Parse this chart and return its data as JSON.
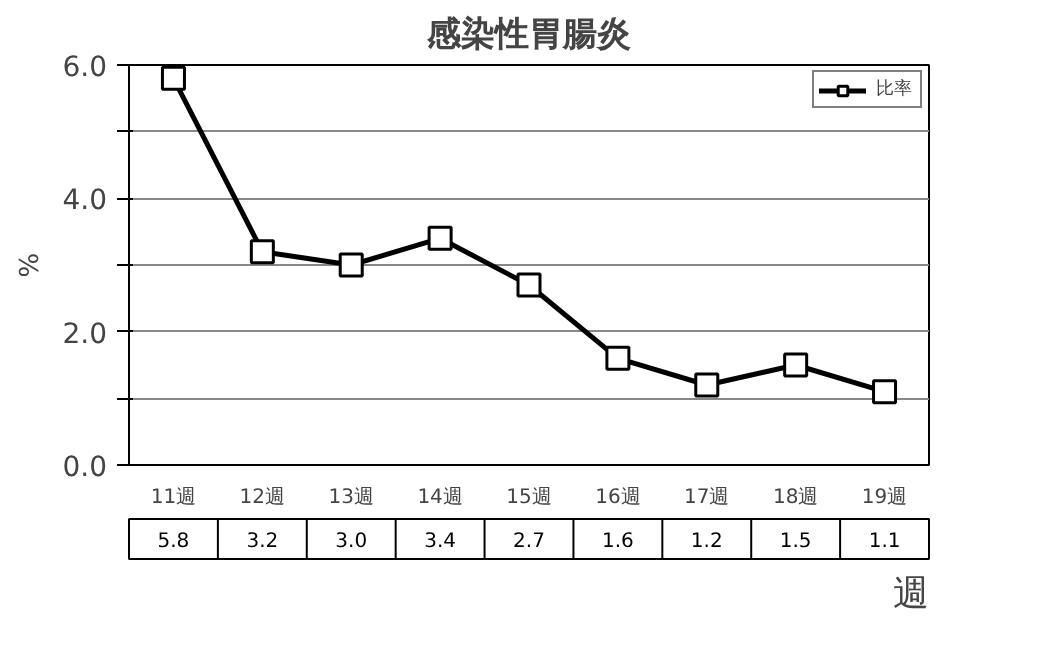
{
  "chart_data": {
    "type": "line",
    "title": "感染性胃腸炎",
    "ylabel": "%",
    "xlabel": "週",
    "categories": [
      "11週",
      "12週",
      "13週",
      "14週",
      "15週",
      "16週",
      "17週",
      "18週",
      "19週"
    ],
    "series": [
      {
        "name": "比率",
        "color": "#000000",
        "values": [
          5.8,
          3.2,
          3.0,
          3.4,
          2.7,
          1.6,
          1.2,
          1.5,
          1.1
        ],
        "value_labels": [
          "5.8",
          "3.2",
          "3.0",
          "3.4",
          "2.7",
          "1.6",
          "1.2",
          "1.5",
          "1.1"
        ]
      }
    ],
    "ylim": [
      0,
      6
    ],
    "yticks": [
      {
        "value": 0,
        "label": "0.0"
      },
      {
        "value": 1,
        "label": null
      },
      {
        "value": 2,
        "label": "2.0"
      },
      {
        "value": 3,
        "label": null
      },
      {
        "value": 4,
        "label": "4.0"
      },
      {
        "value": 5,
        "label": null
      },
      {
        "value": 6,
        "label": "6.0"
      }
    ],
    "grid": "y",
    "legend": "top right",
    "marker": "square",
    "line_style": "solid"
  }
}
